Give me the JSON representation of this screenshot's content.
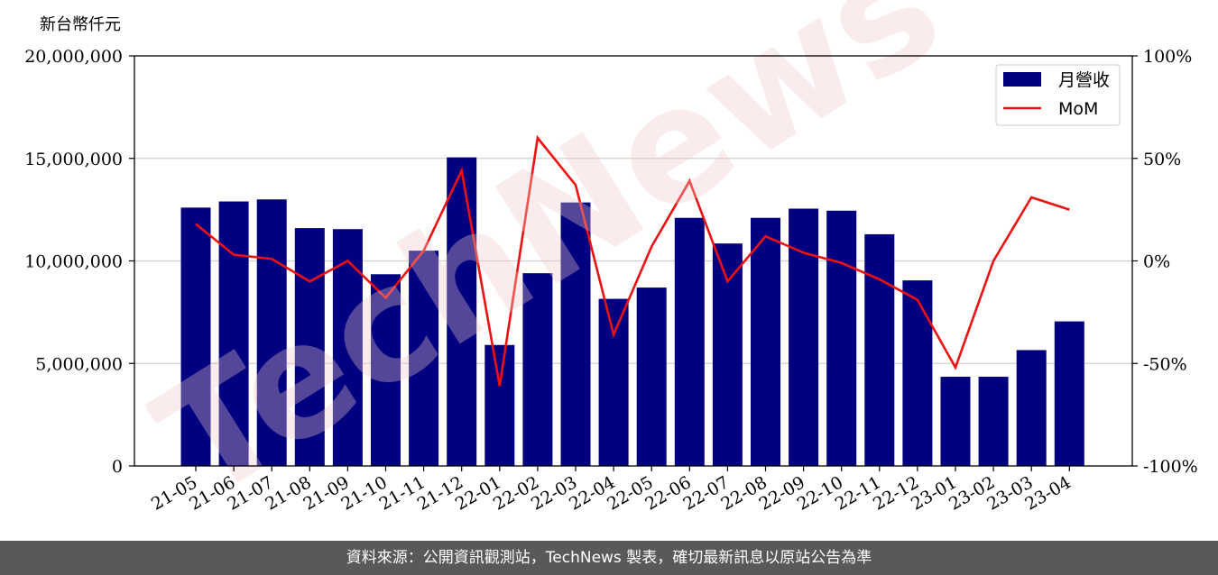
{
  "footer_text": "資料來源：公開資訊觀測站，TechNews 製表，確切最新訊息以原站公告為準",
  "watermark": "TechNews",
  "colors": {
    "bar": "#000080",
    "line": "#ee1111",
    "grid": "#d0d0d0",
    "footer_bg": "#595959",
    "watermark": "#f2c8c8"
  },
  "chart_data": {
    "type": "bar",
    "unit_label": "新台幣仟元",
    "categories": [
      "21-05",
      "21-06",
      "21-07",
      "21-08",
      "21-09",
      "21-10",
      "21-11",
      "21-12",
      "22-01",
      "22-02",
      "22-03",
      "22-04",
      "22-05",
      "22-06",
      "22-07",
      "22-08",
      "22-09",
      "22-10",
      "22-11",
      "22-12",
      "23-01",
      "23-02",
      "23-03",
      "23-04"
    ],
    "series": [
      {
        "name": "月營收",
        "type": "bar",
        "axis": "left",
        "values": [
          12600000,
          12900000,
          13000000,
          11600000,
          11550000,
          9350000,
          10500000,
          15050000,
          5900000,
          9400000,
          12850000,
          8150000,
          8700000,
          12100000,
          10850000,
          12100000,
          12550000,
          12450000,
          11300000,
          9050000,
          4350000,
          4350000,
          5650000,
          7050000
        ]
      },
      {
        "name": "MoM",
        "type": "line",
        "axis": "right",
        "values": [
          18,
          3,
          1,
          -10,
          0,
          -18,
          5,
          44,
          -61,
          60,
          37,
          -36,
          7,
          39,
          -10,
          12,
          4,
          -1,
          -9,
          -19,
          -52,
          0,
          31,
          25
        ]
      }
    ],
    "y_left": {
      "lim": [
        0,
        20000000
      ],
      "ticks": [
        "0",
        "5,000,000",
        "10,000,000",
        "15,000,000",
        "20,000,000"
      ]
    },
    "y_right": {
      "lim": [
        -100,
        100
      ],
      "ticks": [
        "-100%",
        "-50%",
        "0%",
        "50%",
        "100%"
      ]
    },
    "grid": "horizontal",
    "legend": "top-right"
  }
}
